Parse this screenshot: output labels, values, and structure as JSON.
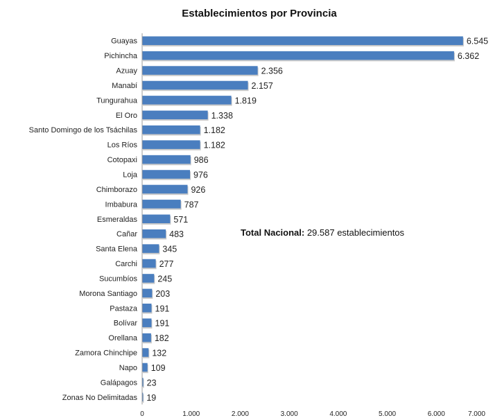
{
  "chart_data": {
    "type": "bar",
    "orientation": "horizontal",
    "title": "Establecimientos por Provincia",
    "categories": [
      "Guayas",
      "Pichincha",
      "Azuay",
      "Manabí",
      "Tungurahua",
      "El Oro",
      "Santo Domingo de los Tsáchilas",
      "Los Ríos",
      "Cotopaxi",
      "Loja",
      "Chimborazo",
      "Imbabura",
      "Esmeraldas",
      "Cañar",
      "Santa Elena",
      "Carchi",
      "Sucumbíos",
      "Morona Santiago",
      "Pastaza",
      "Bolívar",
      "Orellana",
      "Zamora Chinchipe",
      "Napo",
      "Galápagos",
      "Zonas No Delimitadas"
    ],
    "values": [
      6545,
      6362,
      2356,
      2157,
      1819,
      1338,
      1182,
      1182,
      986,
      976,
      926,
      787,
      571,
      483,
      345,
      277,
      245,
      203,
      191,
      191,
      182,
      132,
      109,
      23,
      19
    ],
    "value_labels": [
      "6.545",
      "6.362",
      "2.356",
      "2.157",
      "1.819",
      "1.338",
      "1.182",
      "1.182",
      "986",
      "976",
      "926",
      "787",
      "571",
      "483",
      "345",
      "277",
      "245",
      "203",
      "191",
      "191",
      "182",
      "132",
      "109",
      "23",
      "19"
    ],
    "xlim": [
      0,
      7000
    ],
    "x_ticks": [
      0,
      1000,
      2000,
      3000,
      4000,
      5000,
      6000,
      7000
    ],
    "x_tick_labels": [
      "0",
      "1.000",
      "2.000",
      "3.000",
      "4.000",
      "5.000",
      "6.000",
      "7.000"
    ],
    "bar_color": "#4a7ebf",
    "grid": false,
    "annotation": {
      "bold": "Total Nacional:",
      "text": " 29.587 establecimientos"
    }
  }
}
